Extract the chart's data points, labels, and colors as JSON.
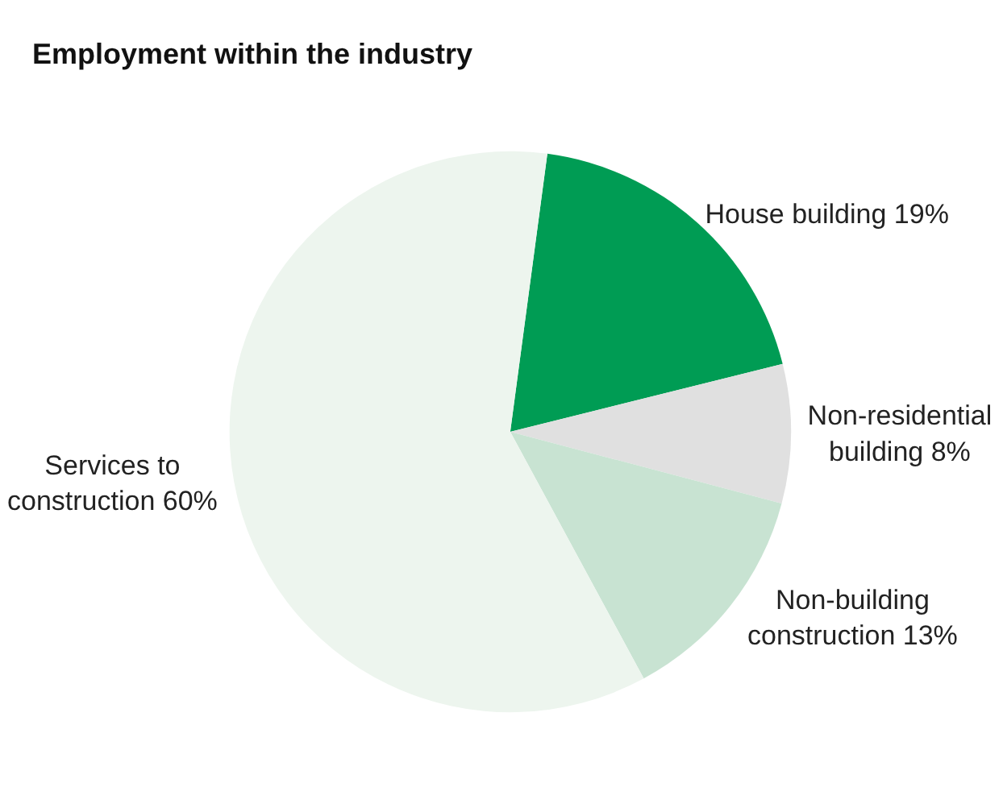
{
  "chart_data": {
    "type": "pie",
    "title": "Employment within the industry",
    "categories": [
      "House building",
      "Non-residential\nbuilding",
      "Non-building\nconstruction",
      "Services to\nconstruction"
    ],
    "values": [
      19,
      8,
      13,
      60
    ],
    "value_labels": [
      "19%",
      "8%",
      "13%",
      "60%"
    ],
    "colors": [
      "#009c54",
      "#e0e0e0",
      "#c8e3d2",
      "#edf5ee"
    ],
    "legend": false
  }
}
